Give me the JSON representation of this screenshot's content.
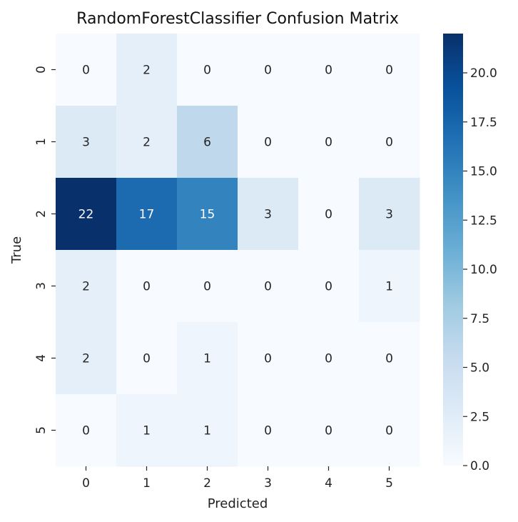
{
  "chart_data": {
    "type": "heatmap",
    "title": "RandomForestClassifier Confusion Matrix",
    "xlabel": "Predicted",
    "ylabel": "True",
    "x_categories": [
      "0",
      "1",
      "2",
      "3",
      "4",
      "5"
    ],
    "y_categories": [
      "0",
      "1",
      "2",
      "3",
      "4",
      "5"
    ],
    "values": [
      [
        0,
        2,
        0,
        0,
        0,
        0
      ],
      [
        3,
        2,
        6,
        0,
        0,
        0
      ],
      [
        22,
        17,
        15,
        3,
        0,
        3
      ],
      [
        2,
        0,
        0,
        0,
        0,
        1
      ],
      [
        2,
        0,
        1,
        0,
        0,
        0
      ],
      [
        0,
        1,
        1,
        0,
        0,
        0
      ]
    ],
    "colormap": "Blues",
    "color_range": [
      0,
      22
    ],
    "colorbar_ticks": [
      "0.0",
      "2.5",
      "5.0",
      "7.5",
      "10.0",
      "12.5",
      "15.0",
      "17.5",
      "20.0"
    ],
    "colorbar_tick_values": [
      0,
      2.5,
      5,
      7.5,
      10,
      12.5,
      15,
      17.5,
      20
    ]
  }
}
